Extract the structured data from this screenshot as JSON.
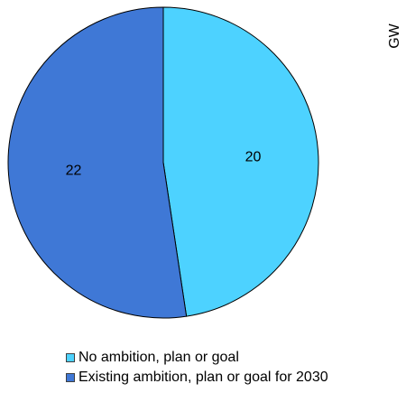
{
  "chart_data": {
    "type": "pie",
    "unit": "GW",
    "categories": [
      "No ambition, plan or goal",
      "Existing ambition, plan or goal for 2030"
    ],
    "values": [
      20,
      22
    ],
    "data_labels": [
      "20",
      "22"
    ],
    "colors": [
      "#4dd2ff",
      "#3f78d6"
    ],
    "legend_position": "bottom",
    "start_angle_deg": 0,
    "direction": "clockwise"
  },
  "legend": {
    "items": [
      {
        "label": "No ambition, plan or goal",
        "color": "#4dd2ff"
      },
      {
        "label": "Existing ambition, plan or goal for 2030",
        "color": "#3f78d6"
      }
    ]
  }
}
